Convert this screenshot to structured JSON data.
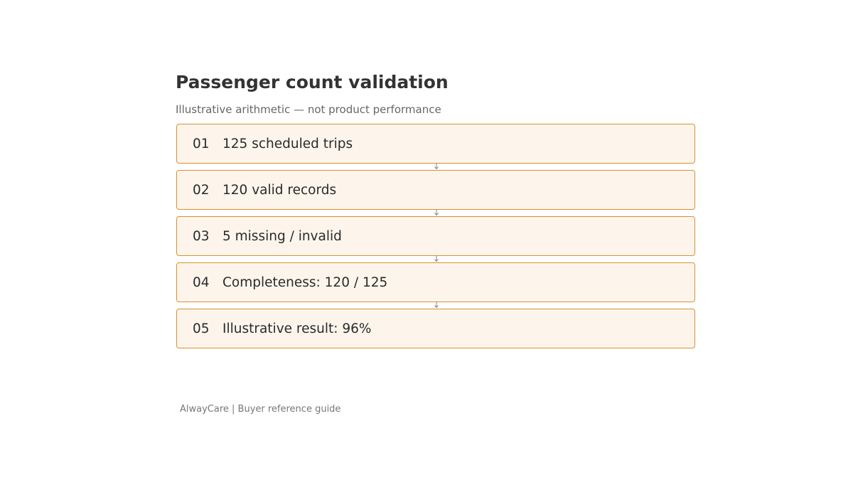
{
  "header": {
    "title": "Passenger count validation",
    "subtitle": "Illustrative arithmetic — not product performance"
  },
  "steps": [
    {
      "number": "01",
      "text": "125 scheduled trips"
    },
    {
      "number": "02",
      "text": "120 valid records"
    },
    {
      "number": "03",
      "text": "5 missing / invalid"
    },
    {
      "number": "04",
      "text": "Completeness: 120 / 125"
    },
    {
      "number": "05",
      "text": "Illustrative result: 96%"
    }
  ],
  "footer": {
    "text": "AlwayCare | Buyer reference guide"
  },
  "colors": {
    "box_fill": "#fdf5ec",
    "box_border": "#d9902e",
    "connector": "#888888",
    "title": "#333333",
    "subtitle": "#666666"
  }
}
